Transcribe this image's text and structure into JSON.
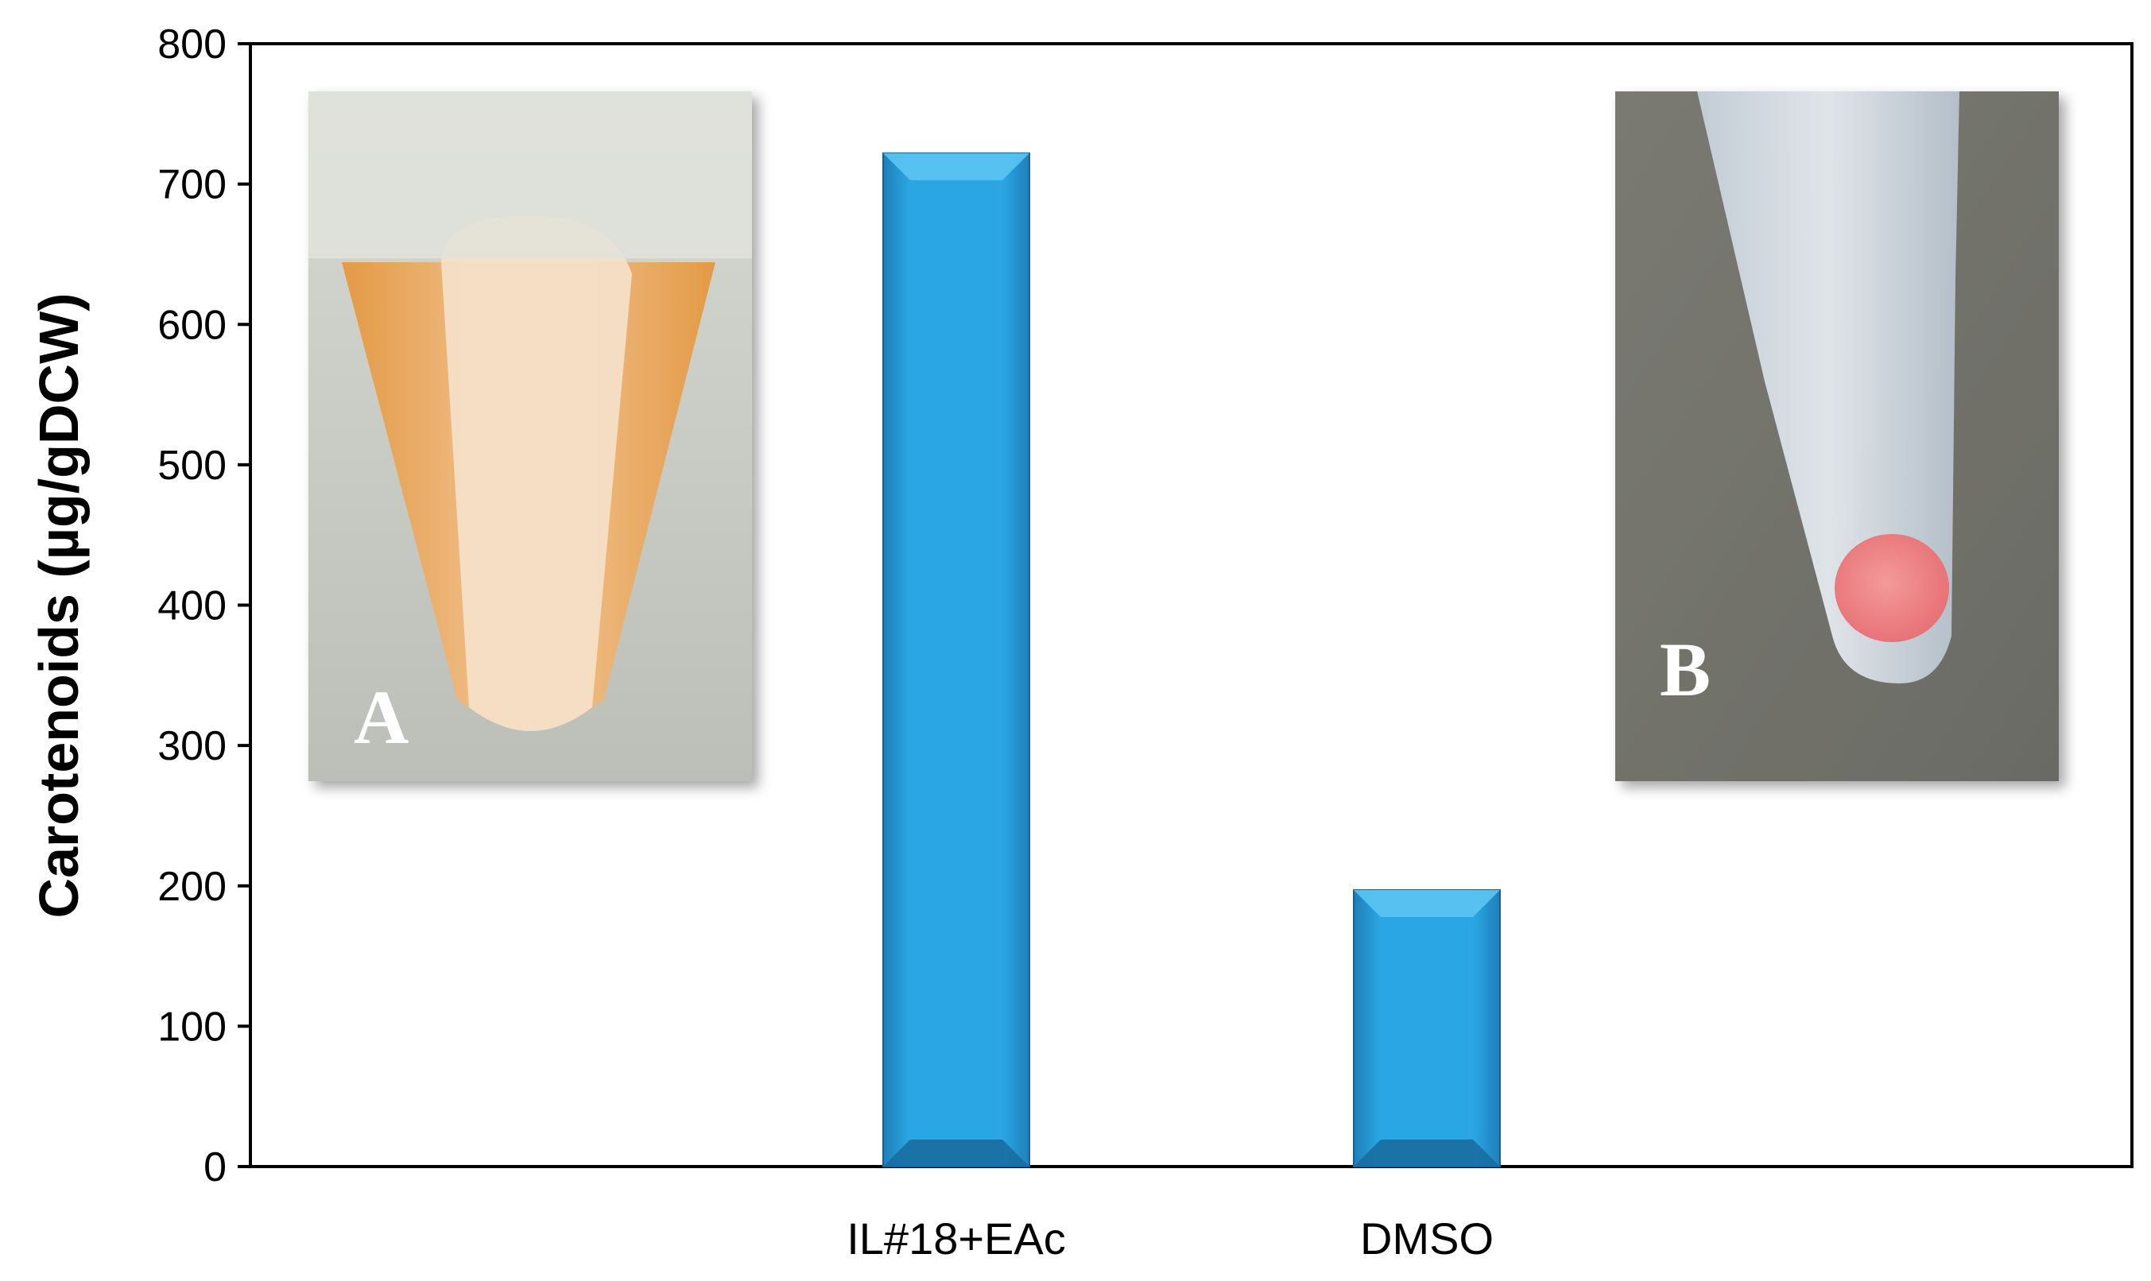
{
  "chart_data": {
    "type": "bar",
    "categories": [
      "IL#18+EAc",
      "DMSO"
    ],
    "values": [
      722,
      197
    ],
    "title": "",
    "xlabel": "",
    "ylabel": "Carotenoids (µg/gDCW)",
    "ylim": [
      0,
      800
    ],
    "yticks": [
      0,
      100,
      200,
      300,
      400,
      500,
      600,
      700,
      800
    ],
    "bar_color": "#29a3e0",
    "grid": false,
    "legend": "none",
    "insets": [
      {
        "label": "A",
        "description_color": "#e89a3c"
      },
      {
        "label": "B",
        "description_color": "#f07a7a"
      }
    ]
  }
}
